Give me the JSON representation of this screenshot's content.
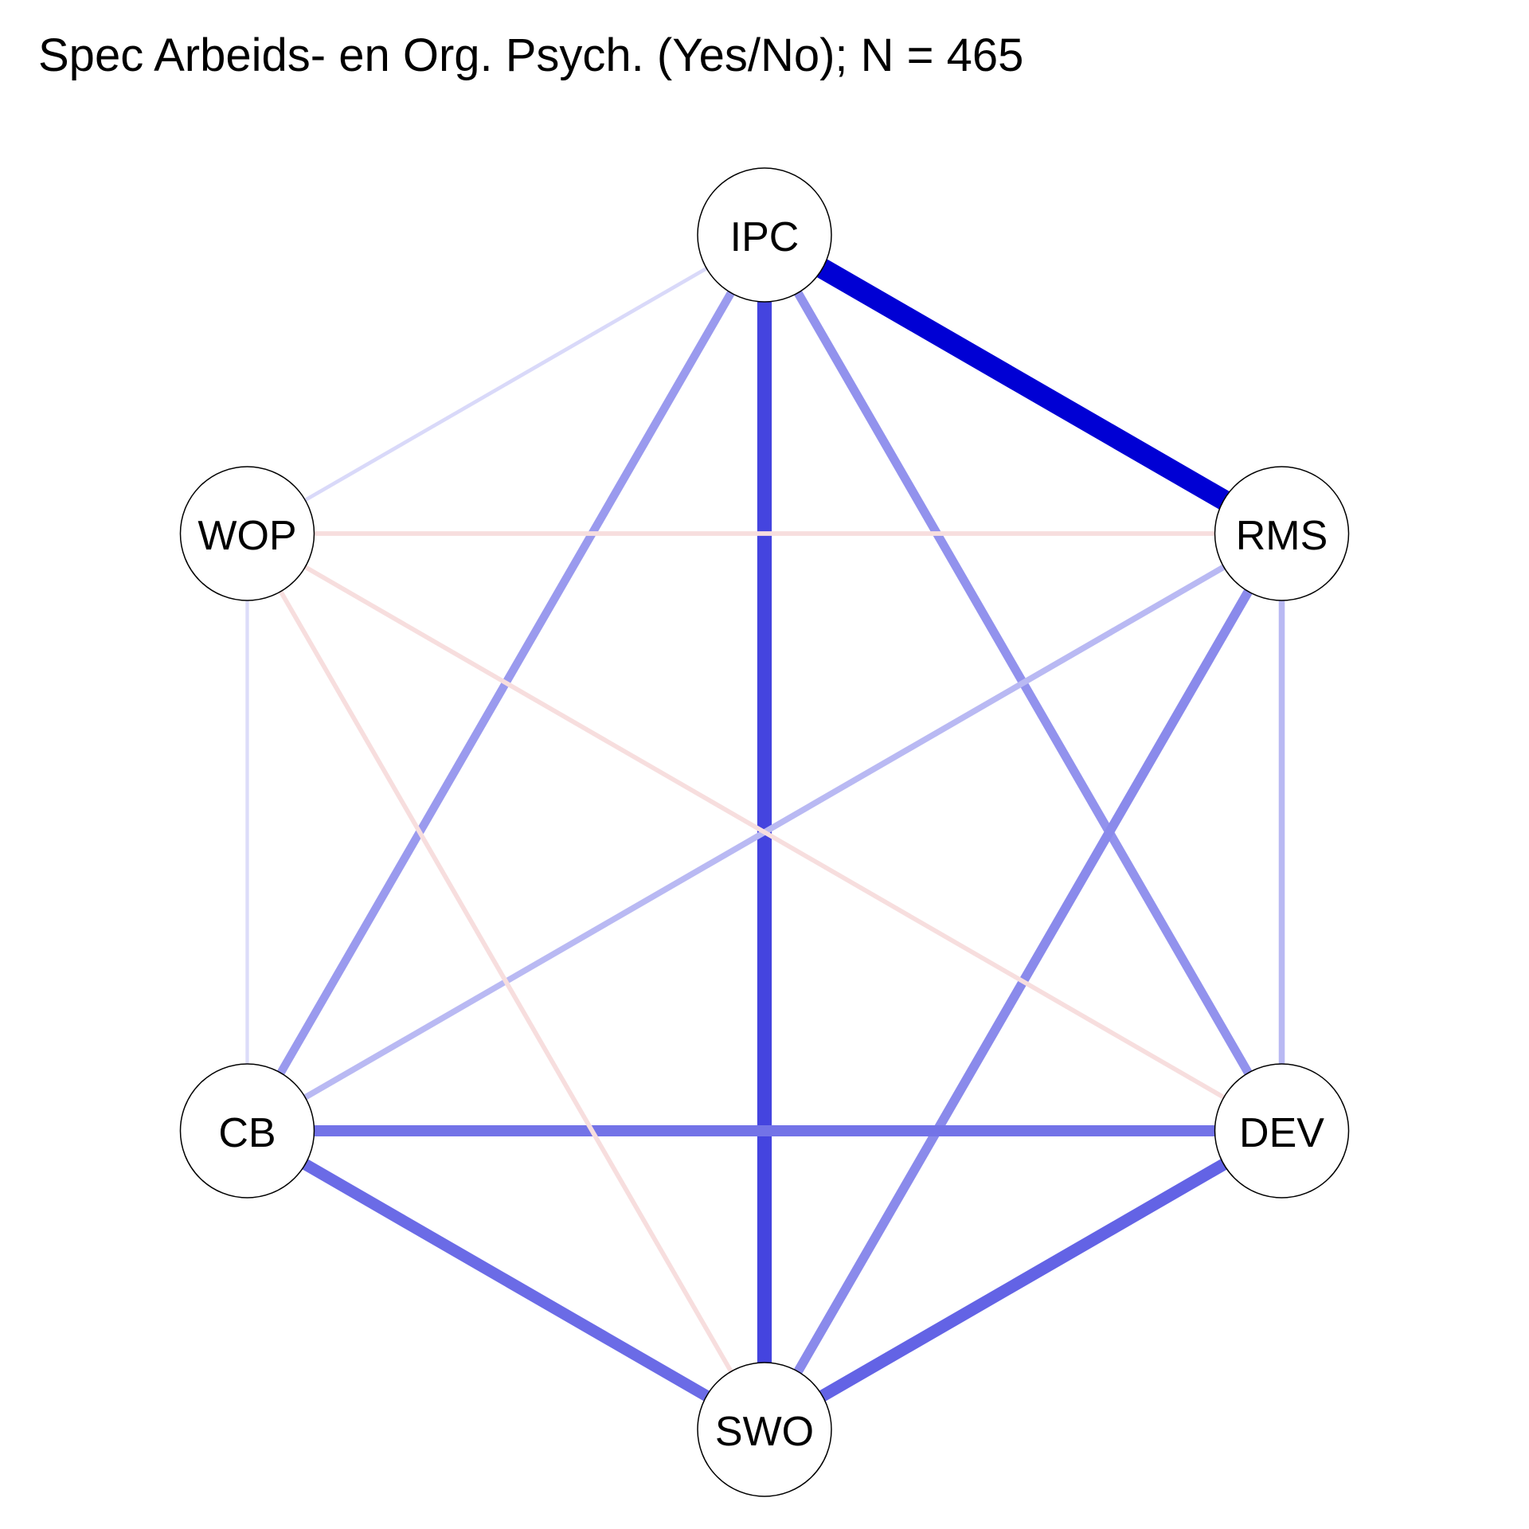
{
  "title": "Spec Arbeids- en Org. Psych. (Yes/No); N = 465",
  "nodes": [
    {
      "id": "IPC",
      "label": "IPC"
    },
    {
      "id": "RMS",
      "label": "RMS"
    },
    {
      "id": "DEV",
      "label": "DEV"
    },
    {
      "id": "SWO",
      "label": "SWO"
    },
    {
      "id": "CB",
      "label": "CB"
    },
    {
      "id": "WOP",
      "label": "WOP"
    }
  ],
  "edge_colors": {
    "positive": "#0000d4",
    "negative": "#e8a0a0"
  },
  "edges": [
    {
      "from": "IPC",
      "to": "RMS",
      "weight": 0.62
    },
    {
      "from": "IPC",
      "to": "SWO",
      "weight": 0.4
    },
    {
      "from": "IPC",
      "to": "CB",
      "weight": 0.18
    },
    {
      "from": "IPC",
      "to": "DEV",
      "weight": 0.2
    },
    {
      "from": "IPC",
      "to": "WOP",
      "weight": 0.02
    },
    {
      "from": "RMS",
      "to": "SWO",
      "weight": 0.22
    },
    {
      "from": "RMS",
      "to": "CB",
      "weight": 0.1
    },
    {
      "from": "RMS",
      "to": "DEV",
      "weight": 0.1
    },
    {
      "from": "RMS",
      "to": "WOP",
      "weight": -0.05
    },
    {
      "from": "CB",
      "to": "DEV",
      "weight": 0.28
    },
    {
      "from": "CB",
      "to": "SWO",
      "weight": 0.3
    },
    {
      "from": "DEV",
      "to": "SWO",
      "weight": 0.32
    },
    {
      "from": "WOP",
      "to": "DEV",
      "weight": -0.05
    },
    {
      "from": "WOP",
      "to": "SWO",
      "weight": -0.05
    },
    {
      "from": "WOP",
      "to": "CB",
      "weight": 0.01
    }
  ]
}
